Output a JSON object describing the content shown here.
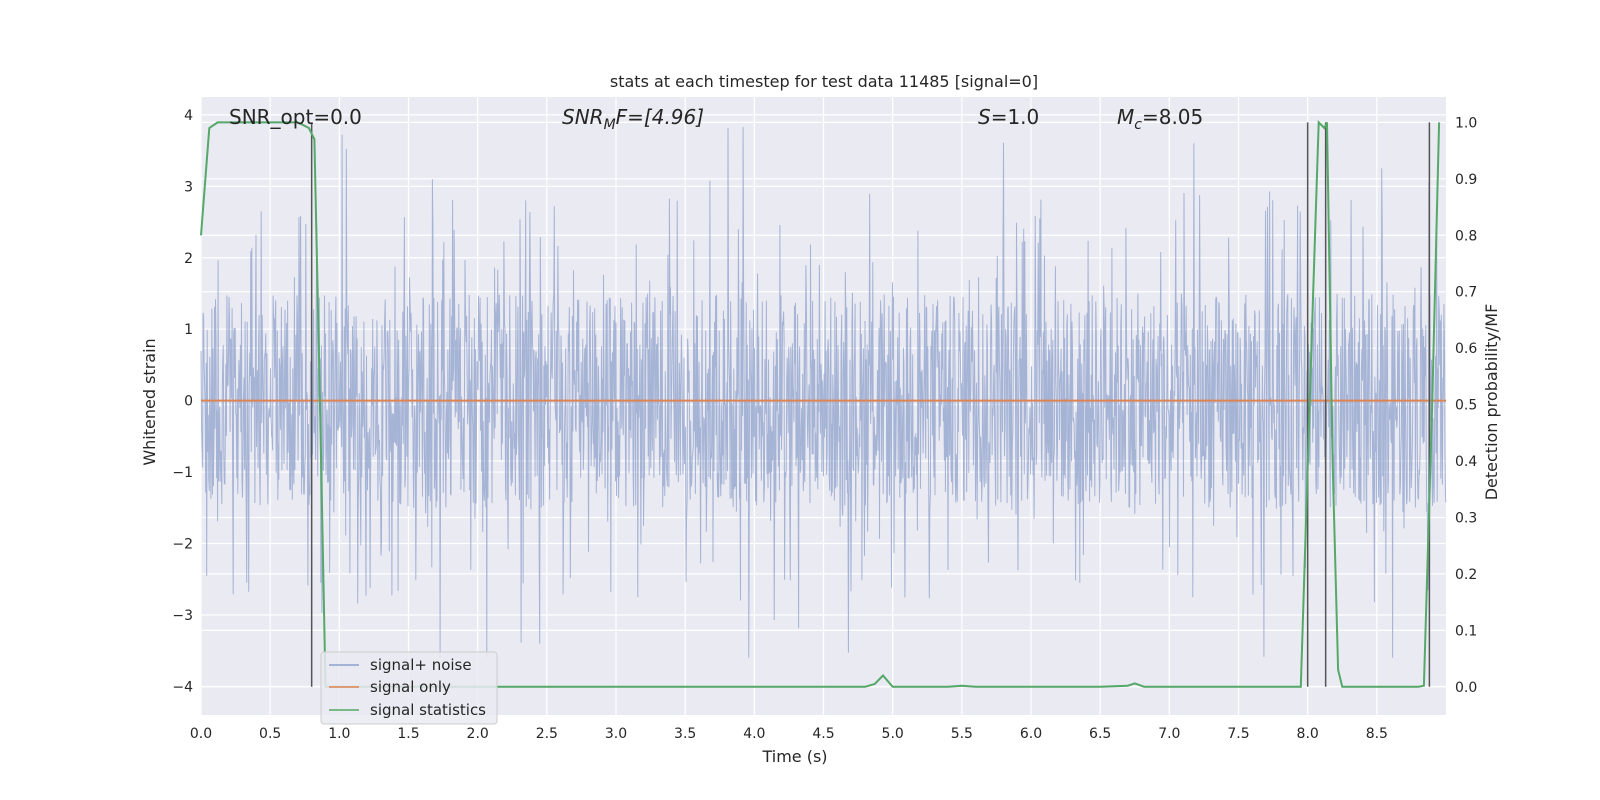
{
  "chart_data": {
    "type": "line",
    "title": "stats at each timestep for test data 11485 [signal=0]",
    "xlabel": "Time (s)",
    "ylabel": "Whitened strain",
    "y2label": "Detection probability/MF",
    "xlim": [
      0.0,
      9.0
    ],
    "ylim": [
      -4.4,
      4.25
    ],
    "y2lim": [
      -0.05,
      1.045
    ],
    "xticks": [
      0.0,
      0.5,
      1.0,
      1.5,
      2.0,
      2.5,
      3.0,
      3.5,
      4.0,
      4.5,
      5.0,
      5.5,
      6.0,
      6.5,
      7.0,
      7.5,
      8.0,
      8.5
    ],
    "xtick_labels": [
      "0.0",
      "0.5",
      "1.0",
      "1.5",
      "2.0",
      "2.5",
      "3.0",
      "3.5",
      "4.0",
      "4.5",
      "5.0",
      "5.5",
      "6.0",
      "6.5",
      "7.0",
      "7.5",
      "8.0",
      "8.5"
    ],
    "yticks": [
      -4,
      -3,
      -2,
      -1,
      0,
      1,
      2,
      3,
      4
    ],
    "ytick_labels": [
      "−4",
      "−3",
      "−2",
      "−1",
      "0",
      "1",
      "2",
      "3",
      "4"
    ],
    "y2ticks": [
      0.0,
      0.1,
      0.2,
      0.3,
      0.4,
      0.5,
      0.6,
      0.7,
      0.8,
      0.9,
      1.0
    ],
    "y2tick_labels": [
      "0.0",
      "0.1",
      "0.2",
      "0.3",
      "0.4",
      "0.5",
      "0.6",
      "0.7",
      "0.8",
      "0.9",
      "1.0"
    ],
    "grid": true,
    "legend_position": "lower-left",
    "annotations": {
      "snr_opt": "SNR_opt=0.0",
      "snr_mf_main": "SNR",
      "snr_mf_sub": "M",
      "snr_mf_rest": "F=[4.96]",
      "s_main": "S",
      "s_rest": "=1.0",
      "mc_main": "M",
      "mc_sub": "c",
      "mc_rest": "=8.05"
    },
    "series": [
      {
        "name": "signal+ noise",
        "color": "#8da0cb",
        "axis": "left",
        "description_values": "whitened noise, approx. uniform band ±1.5 with spikes to ±3.8",
        "noise_band": [
          -1.5,
          1.5
        ],
        "spike_range": [
          -3.6,
          3.9
        ]
      },
      {
        "name": "signal only",
        "color": "#dd8452",
        "axis": "left",
        "x": [
          0.0,
          9.0
        ],
        "y": [
          0.0,
          0.0
        ]
      },
      {
        "name": "signal statistics",
        "color": "#55a868",
        "axis": "right",
        "x": [
          0.0,
          0.06,
          0.12,
          0.2,
          0.4,
          0.6,
          0.7,
          0.78,
          0.82,
          0.86,
          0.9,
          1.0,
          2.0,
          3.0,
          4.0,
          4.5,
          4.8,
          4.87,
          4.93,
          5.0,
          5.2,
          5.4,
          5.5,
          5.6,
          6.0,
          6.5,
          6.7,
          6.75,
          6.82,
          7.0,
          7.5,
          7.95,
          8.04,
          8.08,
          8.12,
          8.14,
          8.18,
          8.22,
          8.25,
          8.4,
          8.6,
          8.8,
          8.84,
          8.9,
          8.95
        ],
        "y": [
          0.8,
          0.99,
          1.0,
          1.0,
          1.0,
          1.0,
          1.0,
          0.99,
          0.97,
          0.5,
          0.0,
          0.0,
          0.0,
          0.0,
          0.0,
          0.0,
          0.0,
          0.005,
          0.02,
          0.0,
          0.0,
          0.0,
          0.002,
          0.0,
          0.0,
          0.0,
          0.002,
          0.006,
          0.0,
          0.0,
          0.0,
          0.0,
          0.7,
          1.0,
          0.99,
          1.0,
          0.4,
          0.03,
          0.0,
          0.0,
          0.0,
          0.0,
          0.002,
          0.5,
          1.0
        ]
      }
    ],
    "vertical_lines_x": [
      0.8,
      8.0,
      8.13,
      8.88
    ]
  }
}
